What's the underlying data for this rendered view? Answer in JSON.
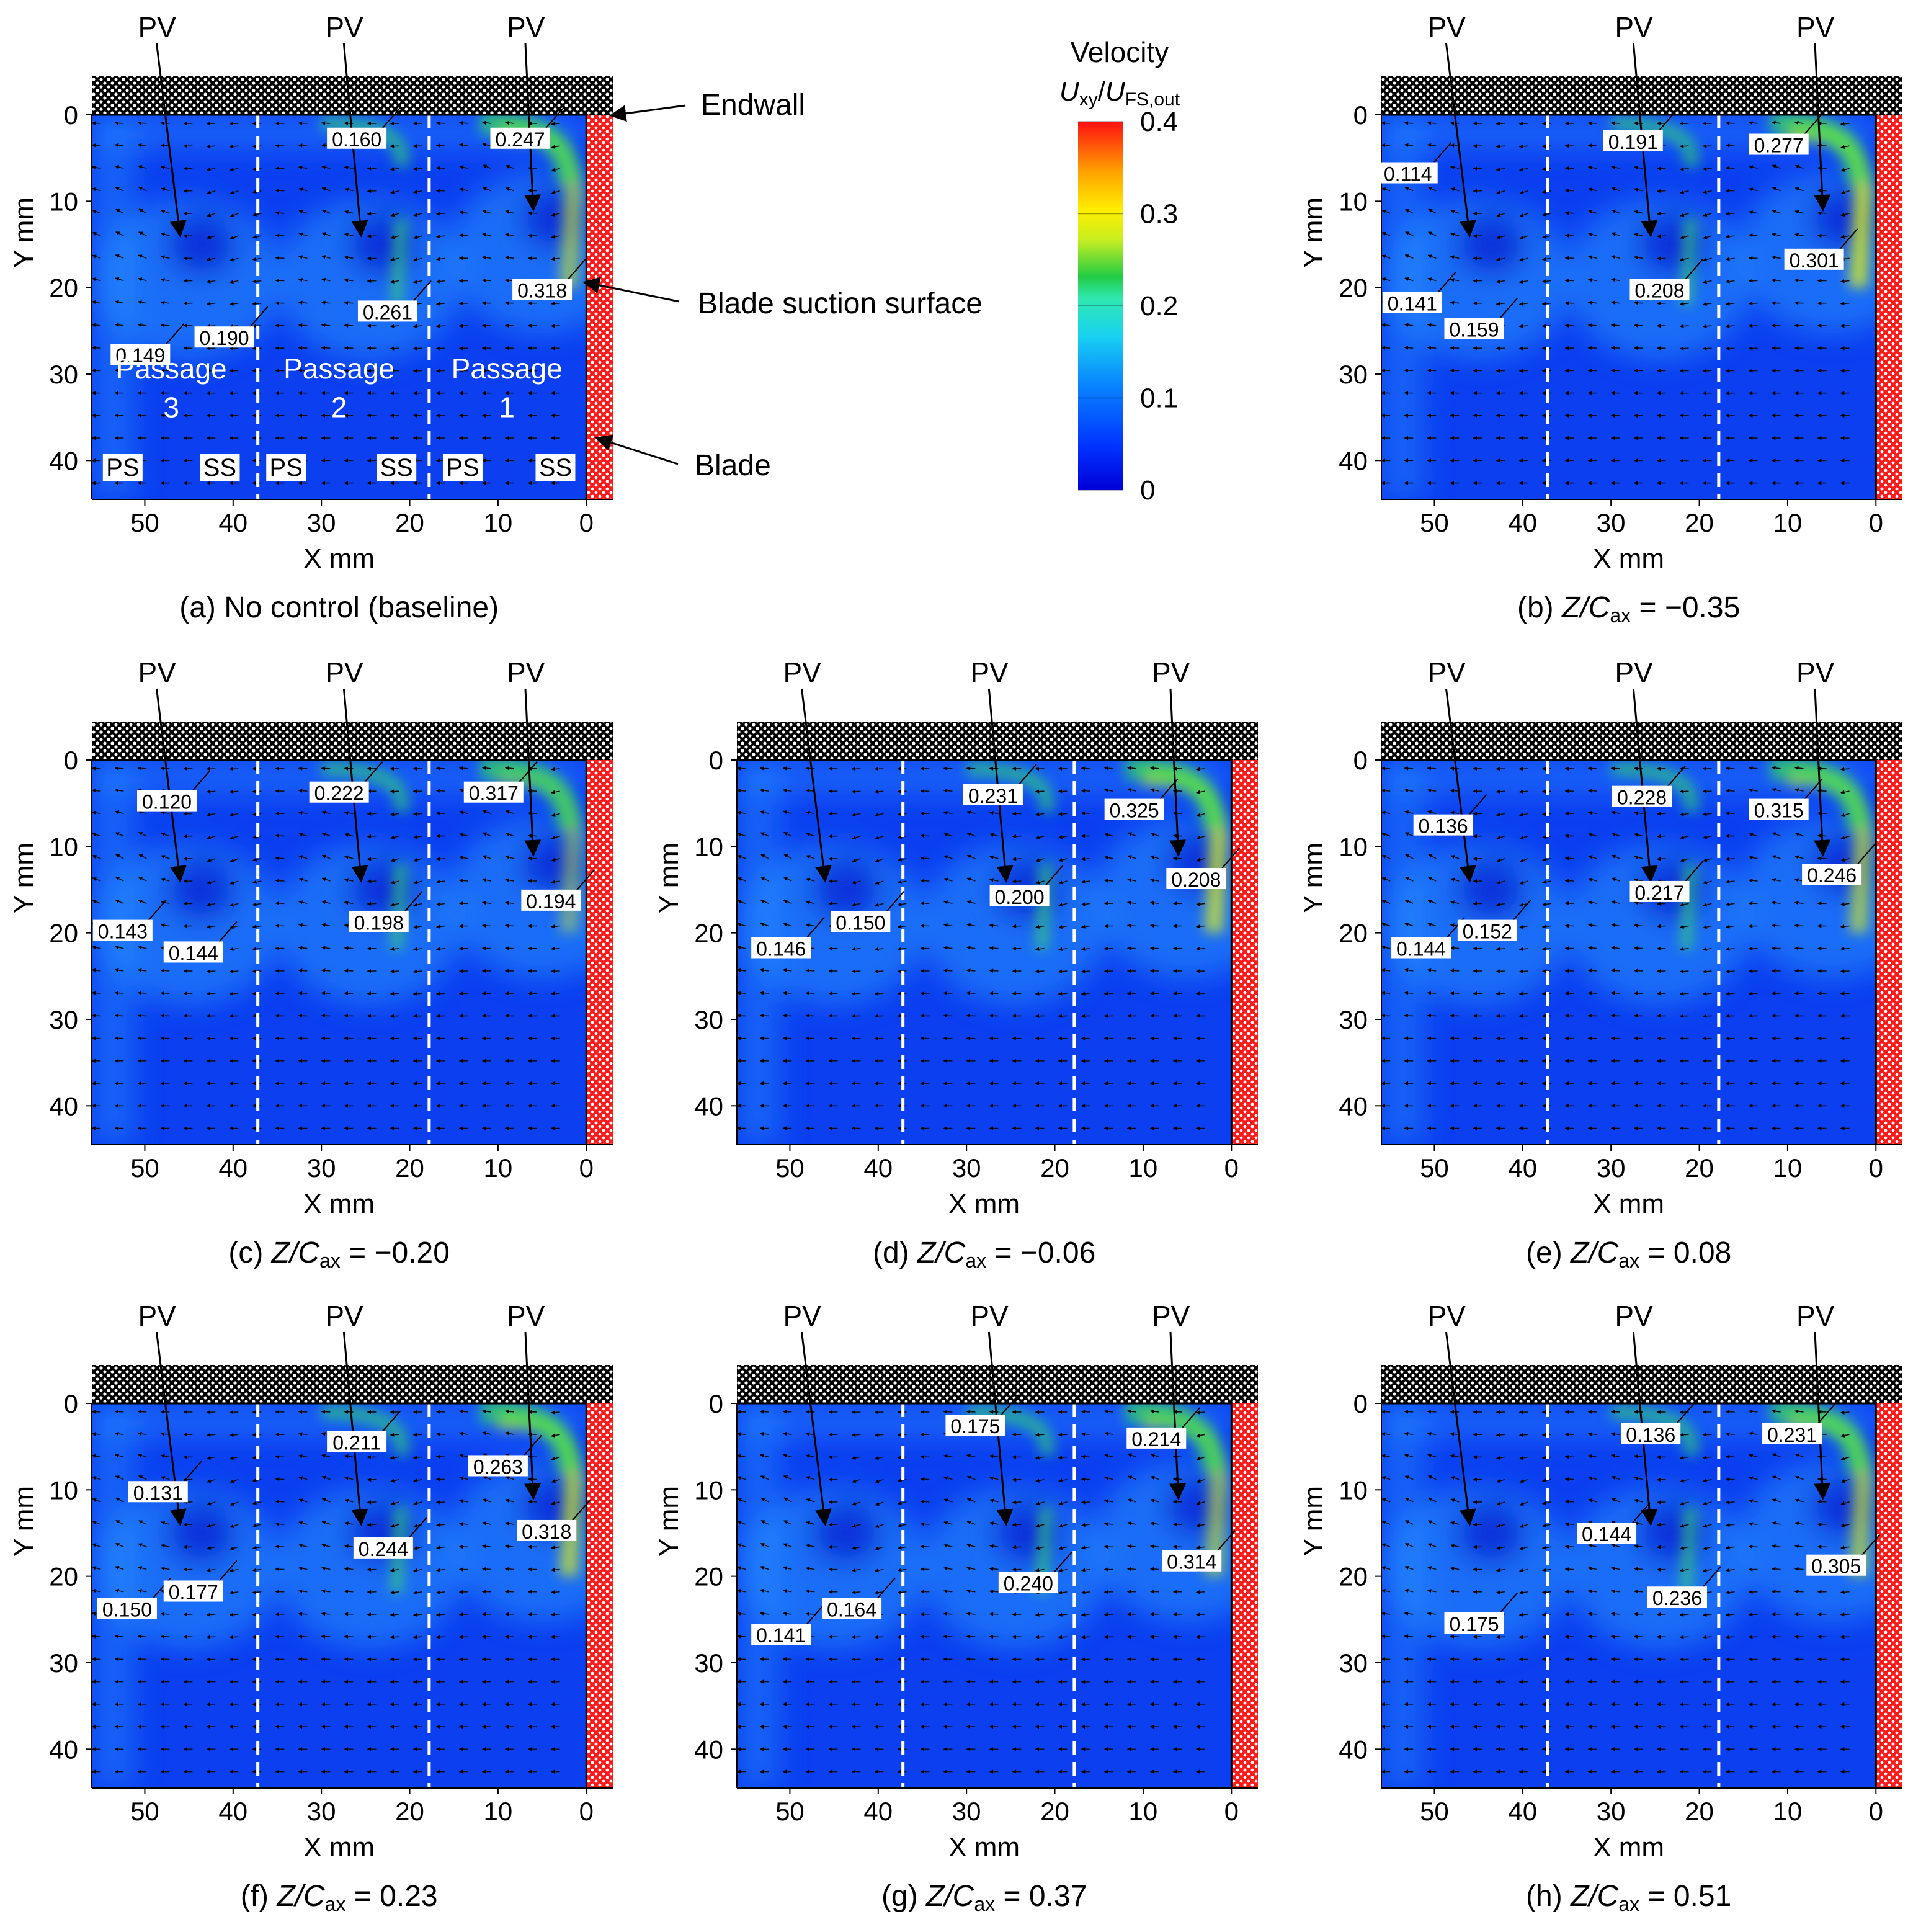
{
  "chart_data": {
    "type": "heatmap",
    "title": "",
    "colorbar": {
      "title": "Velocity",
      "symbol_main": "U",
      "symbol_sub": "xy",
      "symbol_den": "U",
      "symbol_den_sub": "FS,out",
      "ticks": [
        "0.4",
        "0.3",
        "0.2",
        "0.1",
        "0"
      ],
      "range": [
        0,
        0.4
      ]
    },
    "annotations": {
      "endwall": "Endwall",
      "suction": "Blade suction surface",
      "blade": "Blade",
      "pv": "PV",
      "passage": "Passage",
      "passage_numbers": [
        "3",
        "2",
        "1"
      ],
      "ps": "PS",
      "ss": "SS"
    },
    "axes": {
      "xlabel": "X mm",
      "ylabel": "Y mm",
      "xticks": [
        "50",
        "40",
        "30",
        "20",
        "10",
        "0"
      ],
      "yticks": [
        "0",
        "10",
        "20",
        "30",
        "40"
      ],
      "xlim": [
        56,
        -3
      ],
      "ylim": [
        44,
        -4
      ]
    },
    "caption_text": {
      "z": "Z",
      "c": "C",
      "ax": "ax"
    },
    "panels": [
      {
        "letter": "(a)",
        "caption_plain": "No control (baseline)",
        "value": "",
        "labels": [
          {
            "v": "0.160",
            "x": 26,
            "y": 3.5
          },
          {
            "v": "0.247",
            "x": 7.5,
            "y": 3.5
          },
          {
            "v": "0.149",
            "x": 50.5,
            "y": 28.5
          },
          {
            "v": "0.190",
            "x": 41,
            "y": 26.5
          },
          {
            "v": "0.261",
            "x": 22.5,
            "y": 23.5
          },
          {
            "v": "0.318",
            "x": 5,
            "y": 21
          }
        ]
      },
      {
        "letter": "(b)",
        "caption_plain": "",
        "value": "−0.35",
        "labels": [
          {
            "v": "0.114",
            "x": 53,
            "y": 7.5
          },
          {
            "v": "0.191",
            "x": 27.5,
            "y": 3.8
          },
          {
            "v": "0.277",
            "x": 11,
            "y": 4.2
          },
          {
            "v": "0.141",
            "x": 52.5,
            "y": 22.5
          },
          {
            "v": "0.159",
            "x": 45.5,
            "y": 25.5
          },
          {
            "v": "0.208",
            "x": 24.5,
            "y": 21
          },
          {
            "v": "0.301",
            "x": 7,
            "y": 17.5
          }
        ]
      },
      {
        "letter": "(c)",
        "caption_plain": "",
        "value": "−0.20",
        "labels": [
          {
            "v": "0.120",
            "x": 47.5,
            "y": 5.5
          },
          {
            "v": "0.222",
            "x": 28,
            "y": 4.5
          },
          {
            "v": "0.317",
            "x": 10.5,
            "y": 4.5
          },
          {
            "v": "0.143",
            "x": 52.5,
            "y": 20.5
          },
          {
            "v": "0.144",
            "x": 44.5,
            "y": 23
          },
          {
            "v": "0.198",
            "x": 23.5,
            "y": 19.5
          },
          {
            "v": "0.194",
            "x": 4,
            "y": 17
          }
        ]
      },
      {
        "letter": "(d)",
        "caption_plain": "",
        "value": "−0.06",
        "labels": [
          {
            "v": "0.150",
            "x": 42,
            "y": 19.5
          },
          {
            "v": "0.146",
            "x": 51,
            "y": 22.5
          },
          {
            "v": "0.231",
            "x": 27,
            "y": 4.8
          },
          {
            "v": "0.200",
            "x": 24,
            "y": 16.5
          },
          {
            "v": "0.325",
            "x": 11,
            "y": 6.5
          },
          {
            "v": "0.208",
            "x": 4,
            "y": 14.5
          }
        ]
      },
      {
        "letter": "(e)",
        "caption_plain": "",
        "value": "0.08",
        "labels": [
          {
            "v": "0.136",
            "x": 49,
            "y": 8.3
          },
          {
            "v": "0.228",
            "x": 26.5,
            "y": 5
          },
          {
            "v": "0.315",
            "x": 11,
            "y": 6.5
          },
          {
            "v": "0.144",
            "x": 51.5,
            "y": 22.5
          },
          {
            "v": "0.152",
            "x": 44,
            "y": 20.5
          },
          {
            "v": "0.217",
            "x": 24.5,
            "y": 16
          },
          {
            "v": "0.246",
            "x": 5,
            "y": 14
          }
        ]
      },
      {
        "letter": "(f)",
        "caption_plain": "",
        "value": "0.23",
        "labels": [
          {
            "v": "0.131",
            "x": 48.5,
            "y": 11
          },
          {
            "v": "0.211",
            "x": 26,
            "y": 5.2
          },
          {
            "v": "0.263",
            "x": 10,
            "y": 8
          },
          {
            "v": "0.150",
            "x": 52,
            "y": 24.5
          },
          {
            "v": "0.177",
            "x": 44.5,
            "y": 22.5
          },
          {
            "v": "0.244",
            "x": 23,
            "y": 17.5
          },
          {
            "v": "0.318",
            "x": 4.5,
            "y": 15.5
          }
        ]
      },
      {
        "letter": "(g)",
        "caption_plain": "",
        "value": "0.37",
        "labels": [
          {
            "v": "0.175",
            "x": 29,
            "y": 3.3
          },
          {
            "v": "0.214",
            "x": 8.5,
            "y": 4.8
          },
          {
            "v": "0.141",
            "x": 51,
            "y": 27.5
          },
          {
            "v": "0.164",
            "x": 43,
            "y": 24.5
          },
          {
            "v": "0.240",
            "x": 23,
            "y": 21.5
          },
          {
            "v": "0.314",
            "x": 4.5,
            "y": 19
          }
        ]
      },
      {
        "letter": "(h)",
        "caption_plain": "",
        "value": "0.51",
        "labels": [
          {
            "v": "0.136",
            "x": 25.5,
            "y": 4.3
          },
          {
            "v": "0.231",
            "x": 9.5,
            "y": 4.3
          },
          {
            "v": "0.144",
            "x": 30.5,
            "y": 15.8
          },
          {
            "v": "0.236",
            "x": 22.5,
            "y": 23.2
          },
          {
            "v": "0.175",
            "x": 45.5,
            "y": 26.2
          },
          {
            "v": "0.305",
            "x": 4.5,
            "y": 19.5
          }
        ]
      }
    ]
  }
}
